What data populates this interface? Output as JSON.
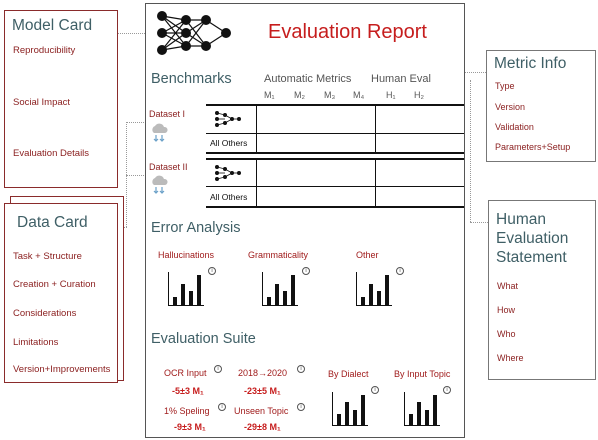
{
  "model_card": {
    "title": "Model Card",
    "items": [
      "Reproducibility",
      "Social Impact",
      "Evaluation Details"
    ]
  },
  "data_card": {
    "title": "Data Card",
    "items": [
      "Task + Structure",
      "Creation + Curation",
      "Considerations",
      "Limitations",
      "Version+Improvements"
    ]
  },
  "metric_info": {
    "title": "Metric Info",
    "items": [
      "Type",
      "Version",
      "Validation",
      "Parameters+Setup"
    ]
  },
  "human_eval": {
    "title_lines": [
      "Human",
      "Evaluation",
      "Statement"
    ],
    "items": [
      "What",
      "How",
      "Who",
      "Where"
    ]
  },
  "report": {
    "title": "Evaluation Report",
    "benchmarks": {
      "title": "Benchmarks",
      "automatic_label": "Automatic Metrics",
      "human_label": "Human Eval",
      "auto_cols": [
        "M₁",
        "M₂",
        "M₃",
        "M₄"
      ],
      "human_cols": [
        "H₁",
        "H₂"
      ],
      "datasets": [
        {
          "label": "Dataset I",
          "other_row": "All Others"
        },
        {
          "label": "Dataset II",
          "other_row": "All Others"
        }
      ]
    },
    "error_analysis": {
      "title": "Error Analysis",
      "charts": [
        {
          "label": "Hallucinations",
          "bars": [
            0.25,
            0.7,
            0.45,
            1.0
          ]
        },
        {
          "label": "Grammaticality",
          "bars": [
            0.25,
            0.7,
            0.45,
            1.0
          ]
        },
        {
          "label": "Other",
          "bars": [
            0.25,
            0.7,
            0.45,
            1.0
          ]
        }
      ]
    },
    "evaluation_suite": {
      "title": "Evaluation Suite",
      "metrics": [
        {
          "label": "OCR Input",
          "value": "-5±3 M₁"
        },
        {
          "label": "2018→2020",
          "value": "-23±5 M₁"
        },
        {
          "label": "1% Speling",
          "value": "-9±3 M₁"
        },
        {
          "label": "Unseen Topic",
          "value": "-29±8 M₁"
        }
      ],
      "charts": [
        {
          "label": "By Dialect",
          "bars": [
            0.35,
            0.75,
            0.5,
            1.0
          ]
        },
        {
          "label": "By Input Topic",
          "bars": [
            0.35,
            0.75,
            0.5,
            1.0
          ]
        }
      ]
    }
  }
}
